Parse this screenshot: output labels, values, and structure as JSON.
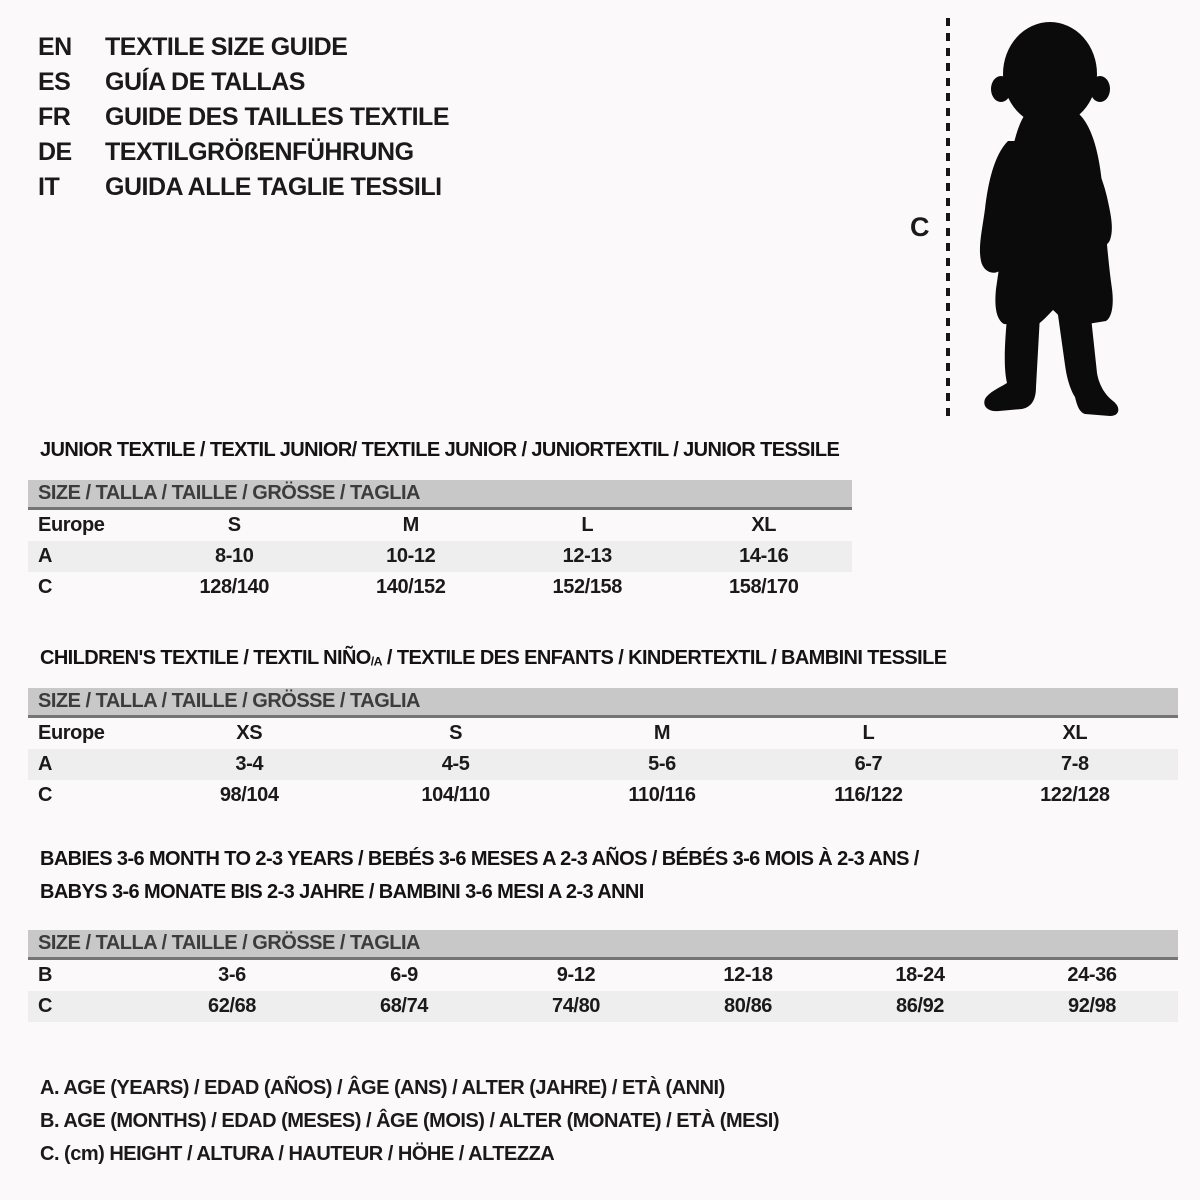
{
  "page": {
    "background": "#fbf9f9",
    "text_color": "#1a1a1a",
    "header_bar_color": "#c8c8c8",
    "header_bar_border_color": "#757575",
    "shaded_row_color": "#eeeeef"
  },
  "languages": [
    {
      "code": "EN",
      "label": "TEXTILE SIZE GUIDE"
    },
    {
      "code": "ES",
      "label": "GUÍA DE TALLAS"
    },
    {
      "code": "FR",
      "label": "GUIDE DES TAILLES TEXTILE"
    },
    {
      "code": "DE",
      "label": "TEXTILGRÖßENFÜHRUNG"
    },
    {
      "code": "IT",
      "label": "GUIDA ALLE TAGLIE TESSILI"
    }
  ],
  "figure": {
    "measure_label": "C",
    "silhouette": "toddler-standing-silhouette"
  },
  "sections": [
    {
      "title": "JUNIOR TEXTILE / TEXTIL JUNIOR/ TEXTILE JUNIOR / JUNIORTEXTIL / JUNIOR TESSILE",
      "size_header": "SIZE / TALLA / TAILLE / GRÖSSE / TAGLIA",
      "rows": [
        {
          "label": "Europe",
          "values": [
            "S",
            "M",
            "L",
            "XL"
          ]
        },
        {
          "label": "A",
          "values": [
            "8-10",
            "10-12",
            "12-13",
            "14-16"
          ]
        },
        {
          "label": "C",
          "values": [
            "128/140",
            "140/152",
            "152/158",
            "158/170"
          ]
        }
      ]
    },
    {
      "title_parts": [
        "CHILDREN'S TEXTILE / TEXTIL NIÑO",
        "/A",
        " / TEXTILE DES ENFANTS / KINDERTEXTIL / BAMBINI TESSILE"
      ],
      "size_header": "SIZE / TALLA / TAILLE / GRÖSSE / TAGLIA",
      "rows": [
        {
          "label": "Europe",
          "values": [
            "XS",
            "S",
            "M",
            "L",
            "XL"
          ]
        },
        {
          "label": "A",
          "values": [
            "3-4",
            "4-5",
            "5-6",
            "6-7",
            "7-8"
          ]
        },
        {
          "label": "C",
          "values": [
            "98/104",
            "104/110",
            "110/116",
            "116/122",
            "122/128"
          ]
        }
      ]
    },
    {
      "title_line1": "BABIES 3-6 MONTH TO 2-3 YEARS / BEBÉS 3-6 MESES A 2-3 AÑOS / BÉBÉS 3-6 MOIS À 2-3 ANS /",
      "title_line2": "BABYS 3-6 MONATE BIS 2-3 JAHRE / BAMBINI 3-6 MESI A 2-3 ANNI",
      "size_header": "SIZE / TALLA / TAILLE / GRÖSSE / TAGLIA",
      "rows": [
        {
          "label": "B",
          "values": [
            "3-6",
            "6-9",
            "9-12",
            "12-18",
            "18-24",
            "24-36"
          ]
        },
        {
          "label": "C",
          "values": [
            "62/68",
            "68/74",
            "74/80",
            "80/86",
            "86/92",
            "92/98"
          ]
        }
      ]
    }
  ],
  "legend": [
    "A. AGE (YEARS) / EDAD (AÑOS) / ÂGE (ANS) / ALTER (JAHRE) / ETÀ (ANNI)",
    "B. AGE (MONTHS) / EDAD (MESES) / ÂGE (MOIS) / ALTER (MONATE) / ETÀ (MESI)",
    "C. (cm) HEIGHT / ALTURA / HAUTEUR / HÖHE / ALTEZZA"
  ]
}
